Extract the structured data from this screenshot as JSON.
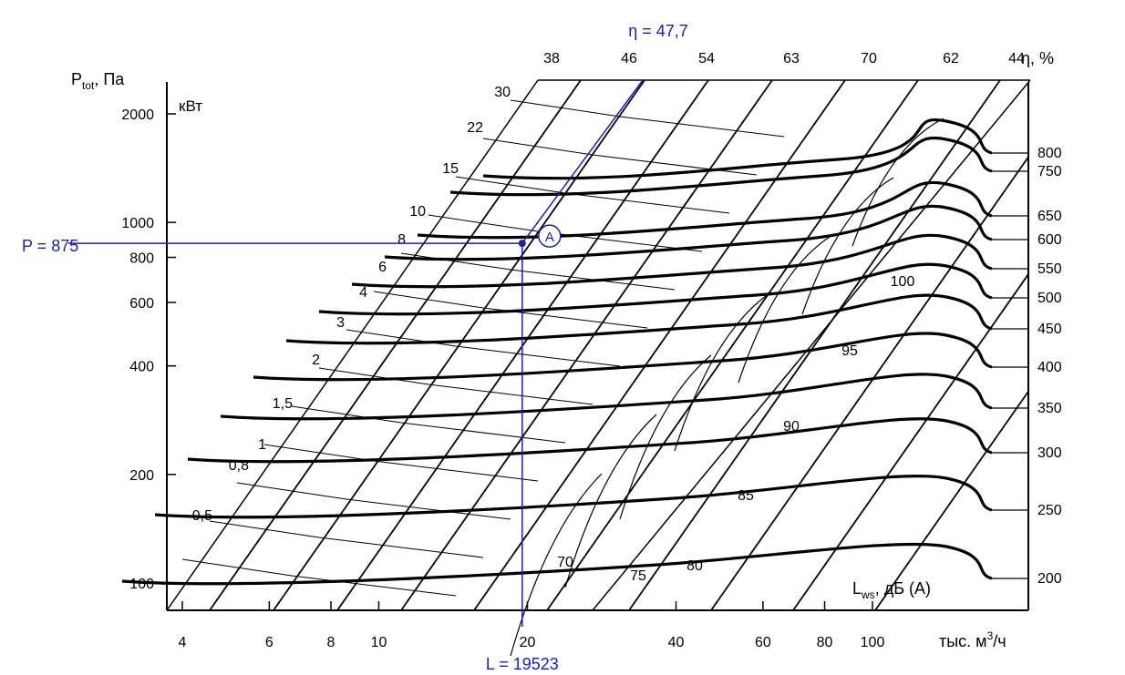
{
  "chart_data": {
    "type": "line",
    "title": "",
    "ylabel_main": "P",
    "ylabel_sub": "tot",
    "ylabel_unit": ", Па",
    "power_unit": "кВт",
    "xlabel": "тыс. м",
    "xlabel_sup": "3",
    "xlabel_tail": "/ч",
    "noise_label_main": "L",
    "noise_label_sub": "ws",
    "noise_label_unit": ", дБ (А)",
    "eff_label": "η, %",
    "x_scale": "log",
    "y_scale": "log",
    "xlim": [
      4,
      160
    ],
    "ylim": [
      80,
      2300
    ],
    "x_ticks": [
      "4",
      "6",
      "8",
      "10",
      "20",
      "40",
      "60",
      "80",
      "100"
    ],
    "x_tick_values": [
      4,
      6,
      8,
      10,
      20,
      40,
      60,
      80,
      100
    ],
    "y_ticks": [
      "100",
      "200",
      "400",
      "600",
      "800",
      "1000",
      "2000"
    ],
    "y_tick_values": [
      100,
      200,
      400,
      600,
      800,
      1000,
      2000
    ],
    "efficiency_labels": [
      "38",
      "46",
      "54",
      "63",
      "70",
      "62",
      "44"
    ],
    "power_labels": [
      "30",
      "22",
      "15",
      "10",
      "8",
      "6",
      "4",
      "3",
      "2",
      "1,5",
      "1",
      "0,8",
      "0,5"
    ],
    "speed_labels": [
      "800",
      "750",
      "650",
      "600",
      "550",
      "500",
      "450",
      "400",
      "350",
      "300",
      "250",
      "200"
    ],
    "noise_labels": [
      "70",
      "75",
      "80",
      "85",
      "90",
      "95",
      "100"
    ],
    "operating_point": {
      "label": "A",
      "flow": 19.523,
      "pressure": 875,
      "efficiency": 47.7,
      "p_text": "P = 875",
      "l_text": "L = 19523",
      "eta_text": "η = 47,7"
    },
    "colors": {
      "curves": "#000000",
      "annotation": "#1a1fa8"
    }
  }
}
